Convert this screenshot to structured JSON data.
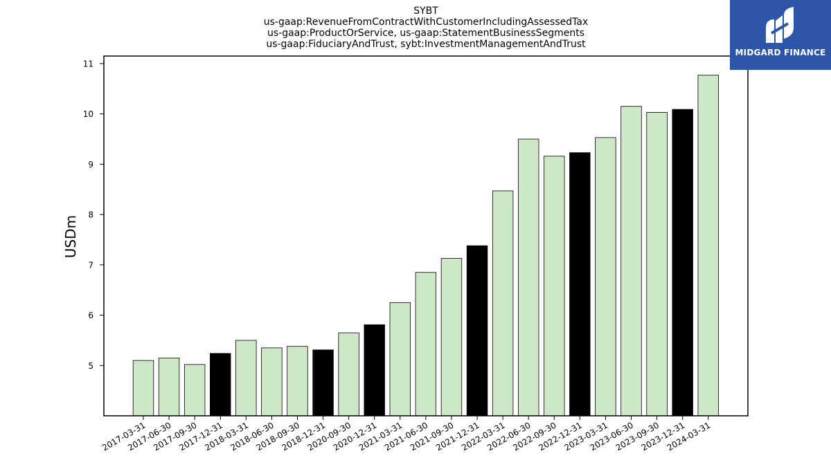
{
  "header": {
    "title_lines": [
      "SYBT",
      "us-gaap:RevenueFromContractWithCustomerIncludingAssessedTax",
      "us-gaap:ProductOrService, us-gaap:StatementBusinessSegments",
      "us-gaap:FiduciaryAndTrust, sybt:InvestmentManagementAndTrust"
    ]
  },
  "logo": {
    "text": "MIDGARD FINANCE",
    "icon": "midgard-logo-icon"
  },
  "colors": {
    "bar_default": "#cce8c6",
    "bar_highlight": "#000000",
    "edge": "#000000",
    "logo_bg": "#2d56a8"
  },
  "chart_data": {
    "type": "bar",
    "ylabel": "USDm",
    "xlabel": "",
    "ylim": [
      4,
      11.15
    ],
    "yticks": [
      5,
      6,
      7,
      8,
      9,
      10,
      11
    ],
    "grid": false,
    "categories": [
      "2017-03-31",
      "2017-06-30",
      "2017-09-30",
      "2017-12-31",
      "2018-03-31",
      "2018-06-30",
      "2018-09-30",
      "2018-12-31",
      "2020-09-30",
      "2020-12-31",
      "2021-03-31",
      "2021-06-30",
      "2021-09-30",
      "2021-12-31",
      "2022-03-31",
      "2022-06-30",
      "2022-09-30",
      "2022-12-31",
      "2023-03-31",
      "2023-06-30",
      "2023-09-30",
      "2023-12-31",
      "2024-03-31"
    ],
    "values": [
      5.1,
      5.15,
      5.02,
      5.24,
      5.5,
      5.35,
      5.38,
      5.31,
      5.65,
      5.81,
      6.25,
      6.85,
      7.13,
      7.38,
      8.47,
      9.5,
      9.16,
      9.23,
      9.53,
      10.15,
      10.03,
      10.09,
      10.77
    ],
    "highlight": [
      false,
      false,
      false,
      true,
      false,
      false,
      false,
      true,
      false,
      true,
      false,
      false,
      false,
      true,
      false,
      false,
      false,
      true,
      false,
      false,
      false,
      true,
      false
    ]
  }
}
